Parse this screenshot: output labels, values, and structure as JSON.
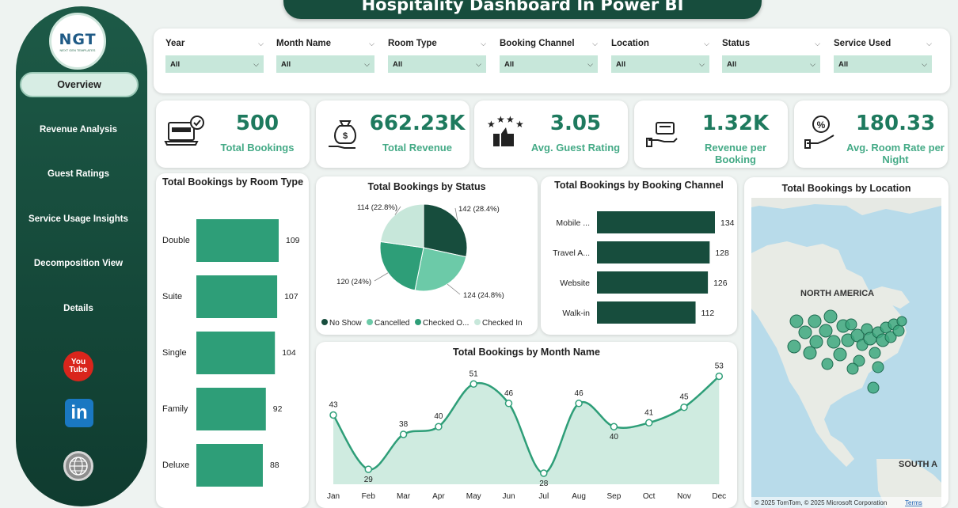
{
  "title": "Hospitality Dashboard In Power BI",
  "logo": {
    "text": "NGT",
    "subtext": "NEXT GEN TEMPLATES"
  },
  "sidebar": {
    "items": [
      {
        "label": "Overview",
        "active": true
      },
      {
        "label": "Revenue Analysis"
      },
      {
        "label": "Guest Ratings"
      },
      {
        "label": "Service Usage Insights"
      },
      {
        "label": "Decomposition View"
      },
      {
        "label": "Details"
      }
    ],
    "social": {
      "youtube_top": "You",
      "youtube_bottom": "Tube",
      "linkedin": "in"
    }
  },
  "filters": [
    {
      "label": "Year",
      "value": "All"
    },
    {
      "label": "Month Name",
      "value": "All"
    },
    {
      "label": "Room Type",
      "value": "All"
    },
    {
      "label": "Booking Channel",
      "value": "All"
    },
    {
      "label": "Location",
      "value": "All"
    },
    {
      "label": "Status",
      "value": "All"
    },
    {
      "label": "Service Used",
      "value": "All"
    }
  ],
  "kpis": [
    {
      "value": "500",
      "label": "Total Bookings",
      "icon": "laptop-booking-icon"
    },
    {
      "value": "662.23K",
      "label": "Total Revenue",
      "icon": "money-bag-icon"
    },
    {
      "value": "3.05",
      "label": "Avg. Guest Rating",
      "icon": "stars-thumb-icon"
    },
    {
      "value": "1.32K",
      "label": "Revenue per Booking",
      "icon": "ticket-hand-icon"
    },
    {
      "value": "180.33",
      "label": "Avg. Room Rate per Night",
      "icon": "percent-hand-icon"
    }
  ],
  "colors": {
    "dark": "#174d3d",
    "accent": "#2e9e78",
    "light": "#c7e7da",
    "mid": "#6ccaa8"
  },
  "chart_data": [
    {
      "type": "bar",
      "orientation": "horizontal",
      "title": "Total Bookings by Room Type",
      "categories": [
        "Double",
        "Suite",
        "Single",
        "Family",
        "Deluxe"
      ],
      "values": [
        109,
        107,
        104,
        92,
        88
      ]
    },
    {
      "type": "pie",
      "title": "Total Bookings by Status",
      "series": [
        {
          "name": "No Show",
          "value": 142,
          "label": "142 (28.4%)"
        },
        {
          "name": "Cancelled",
          "value": 124,
          "label": "124 (24.8%)"
        },
        {
          "name": "Checked O...",
          "value": 120,
          "label": "120 (24%)"
        },
        {
          "name": "Checked In",
          "value": 114,
          "label": "114 (22.8%)"
        }
      ]
    },
    {
      "type": "bar",
      "orientation": "horizontal",
      "title": "Total Bookings by Booking Channel",
      "categories": [
        "Mobile ...",
        "Travel A...",
        "Website",
        "Walk-in"
      ],
      "values": [
        134,
        128,
        126,
        112
      ]
    },
    {
      "type": "area",
      "title": "Total Bookings by Month Name",
      "categories": [
        "Jan",
        "Feb",
        "Mar",
        "Apr",
        "May",
        "Jun",
        "Jul",
        "Aug",
        "Sep",
        "Oct",
        "Nov",
        "Dec"
      ],
      "values": [
        43,
        29,
        38,
        40,
        51,
        46,
        28,
        46,
        40,
        41,
        45,
        53
      ]
    }
  ],
  "map": {
    "title": "Total Bookings by Location",
    "label_na": "NORTH AMERICA",
    "label_sa": "SOUTH A",
    "credit": "© 2025 TomTom, © 2025 Microsoft Corporation",
    "terms": "Terms"
  }
}
